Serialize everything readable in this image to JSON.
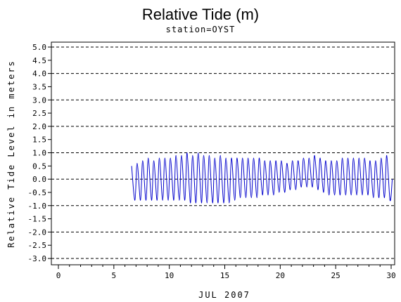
{
  "chart_data": {
    "type": "line",
    "title": "Relative Tide (m)",
    "subtitle": "station=OYST",
    "xlabel": "JUL 2007",
    "ylabel": "Relative Tide Level in meters",
    "xlim": [
      0,
      30
    ],
    "ylim": [
      -3.0,
      5.0
    ],
    "x_ticks": [
      "0",
      "5",
      "10",
      "15",
      "20",
      "25",
      "30"
    ],
    "y_ticks": [
      "5.0",
      "4.5",
      "4.0",
      "3.5",
      "3.0",
      "2.5",
      "2.0",
      "1.5",
      "1.0",
      "0.5",
      "0.0",
      "-0.5",
      "-1.0",
      "-1.5",
      "-2.0",
      "-2.5",
      "-3.0"
    ],
    "reference_lines": [
      5.0,
      4.0,
      3.0,
      2.0,
      1.0,
      0.0,
      -1.0,
      -2.0,
      -3.0
    ],
    "grid": "dashed horizontal reference lines",
    "series": [
      {
        "color": "#0000cc",
        "x": [
          6.6,
          6.9,
          7.1,
          7.4,
          7.6,
          7.9,
          8.1,
          8.4,
          8.6,
          8.9,
          9.1,
          9.4,
          9.6,
          9.9,
          10.1,
          10.4,
          10.6,
          10.9,
          11.1,
          11.4,
          11.6,
          11.9,
          12.1,
          12.4,
          12.6,
          12.9,
          13.1,
          13.4,
          13.6,
          13.9,
          14.1,
          14.4,
          14.6,
          14.9,
          15.1,
          15.4,
          15.6,
          15.9,
          16.1,
          16.4,
          16.6,
          16.9,
          17.1,
          17.4,
          17.6,
          17.9,
          18.1,
          18.4,
          18.6,
          18.9,
          19.1,
          19.4,
          19.6,
          19.9,
          20.1,
          20.4,
          20.6,
          20.9,
          21.1,
          21.4,
          21.6,
          21.9,
          22.1,
          22.4,
          22.6,
          22.9,
          23.1,
          23.4,
          23.6,
          23.9,
          24.1,
          24.4,
          24.6,
          24.9,
          25.1,
          25.4,
          25.6,
          25.9,
          26.1,
          26.4,
          26.6,
          26.9,
          27.1,
          27.4,
          27.6,
          27.9,
          28.1,
          28.4,
          28.6,
          28.9,
          29.1,
          29.4,
          29.6,
          29.9,
          30.1
        ],
        "y": [
          0.5,
          -0.8,
          0.6,
          -0.8,
          0.7,
          -0.8,
          0.8,
          -0.8,
          0.7,
          -0.8,
          0.8,
          -0.8,
          0.8,
          -0.8,
          0.8,
          -0.8,
          0.9,
          -0.8,
          0.9,
          -0.8,
          1.0,
          -0.9,
          0.9,
          -0.9,
          1.0,
          -0.9,
          0.9,
          -0.9,
          0.9,
          -0.9,
          0.8,
          -0.9,
          0.9,
          -0.9,
          0.8,
          -0.9,
          0.8,
          -0.8,
          0.8,
          -0.7,
          0.8,
          -0.7,
          0.8,
          -0.7,
          0.8,
          -0.7,
          0.8,
          -0.6,
          0.7,
          -0.6,
          0.7,
          -0.6,
          0.7,
          -0.5,
          0.7,
          -0.5,
          0.6,
          -0.4,
          0.7,
          -0.4,
          0.7,
          -0.3,
          0.8,
          -0.3,
          0.8,
          -0.3,
          0.9,
          -0.4,
          0.8,
          -0.5,
          0.7,
          -0.6,
          0.7,
          -0.6,
          0.7,
          -0.6,
          0.8,
          -0.6,
          0.8,
          -0.6,
          0.8,
          -0.6,
          0.8,
          -0.6,
          0.8,
          -0.6,
          0.7,
          -0.7,
          0.7,
          -0.7,
          0.8,
          -0.7,
          0.9,
          -0.8,
          0.0
        ]
      }
    ]
  }
}
